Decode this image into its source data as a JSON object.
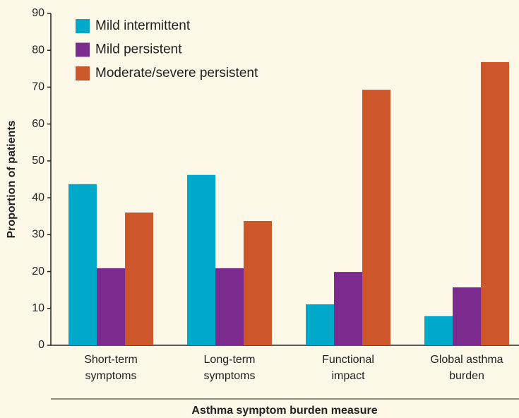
{
  "chart_data": {
    "type": "bar",
    "x_label": "Asthma symptom burden measure",
    "y_label": "Proportion of patients",
    "categories": [
      "Short-term symptoms",
      "Long-term symptoms",
      "Functional impact",
      "Global asthma burden"
    ],
    "series": [
      {
        "name": "Mild intermittent",
        "color": "#00a9c9",
        "values": [
          43.7,
          46.2,
          11.1,
          7.9
        ]
      },
      {
        "name": "Mild persistent",
        "color": "#7b2a8d",
        "values": [
          20.9,
          20.9,
          19.9,
          15.7
        ]
      },
      {
        "name": "Moderate/severe persistent",
        "color": "#cd572b",
        "values": [
          36,
          33.7,
          69.3,
          76.8
        ]
      }
    ],
    "ylim": [
      0,
      90
    ],
    "yticks": [
      0,
      10,
      20,
      30,
      40,
      50,
      60,
      70,
      80,
      90
    ],
    "grid": false,
    "legend": "upper left"
  }
}
